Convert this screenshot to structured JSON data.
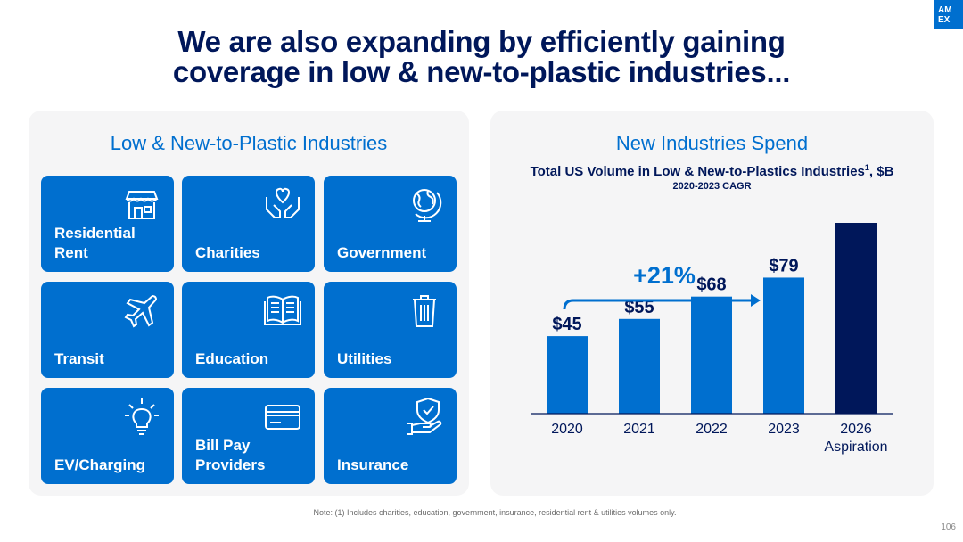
{
  "header": {
    "title_line1": "We are also expanding by efficiently gaining",
    "title_line2": "coverage in low & new-to-plastic industries...",
    "logo_line1": "AM",
    "logo_line2": "EX"
  },
  "left_panel": {
    "heading": "Low & New-to-Plastic Industries",
    "tiles": [
      {
        "label": "Residential\nRent",
        "icon": "storefront-icon"
      },
      {
        "label": "Charities",
        "icon": "hands-heart-icon"
      },
      {
        "label": "Government",
        "icon": "globe-icon"
      },
      {
        "label": "Transit",
        "icon": "airplane-icon"
      },
      {
        "label": "Education",
        "icon": "open-book-icon"
      },
      {
        "label": "Utilities",
        "icon": "trash-can-icon"
      },
      {
        "label": "EV/Charging",
        "icon": "lightbulb-icon"
      },
      {
        "label": "Bill Pay\nProviders",
        "icon": "credit-card-icon"
      },
      {
        "label": "Insurance",
        "icon": "shield-hand-icon"
      }
    ]
  },
  "right_panel": {
    "heading": "New Industries Spend",
    "subtitle": "Total US Volume in Low & New-to-Plastics Industries",
    "subtitle_sup": "1",
    "subtitle_suffix": ", $B",
    "subtitle2": "2020-2023 CAGR"
  },
  "chart_data": {
    "type": "bar",
    "title": "Total US Volume in Low & New-to-Plastics Industries1, $B",
    "categories": [
      "2020",
      "2021",
      "2022",
      "2023",
      "2026\nAspiration"
    ],
    "values": [
      45,
      55,
      68,
      79,
      null
    ],
    "value_labels": [
      "$45",
      "$55",
      "$68",
      "$79",
      ""
    ],
    "annotation": "+21%",
    "colors": {
      "actual": "#006fcf",
      "aspiration": "#00175a"
    },
    "grid": false,
    "ylim": [
      0,
      175
    ]
  },
  "footer": {
    "note": "Note: (1) Includes charities, education, government, insurance, residential rent & utilities volumes only.",
    "page_number": "106"
  }
}
